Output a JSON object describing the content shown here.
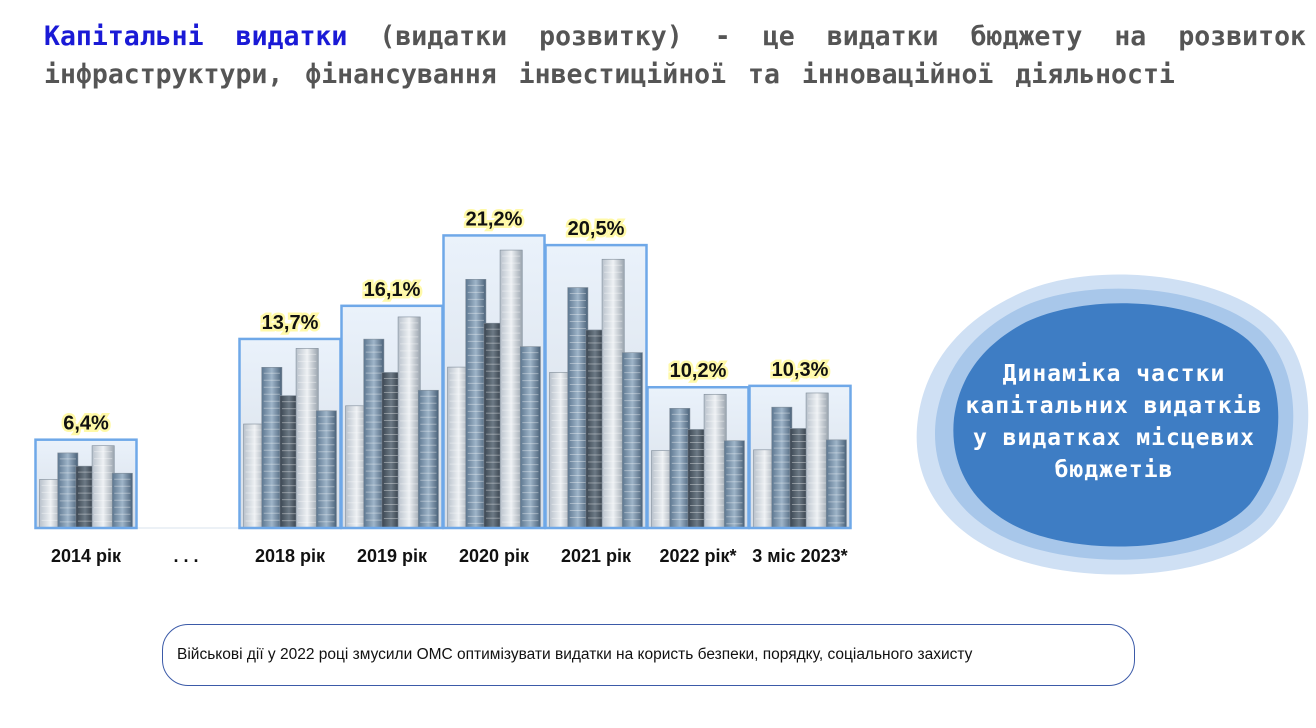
{
  "headline": {
    "term": "Капітальні видатки",
    "rest": " (видатки розвитку) - це видатки бюджету на розвиток інфраструктури, фінансування інвестиційної та інноваційної діяльності"
  },
  "chart_data": {
    "type": "bar",
    "categories": [
      "2014 рік",
      ". . .",
      "2018 рік",
      "2019 рік",
      "2020 рік",
      "2021 рік",
      "2022 рік*",
      "3 міс 2023*"
    ],
    "values": [
      6.4,
      null,
      13.7,
      16.1,
      21.2,
      20.5,
      10.2,
      10.3
    ],
    "data_labels": [
      "6,4%",
      "",
      "13,7%",
      "16,1%",
      "21,2%",
      "20,5%",
      "10,2%",
      "10,3%"
    ],
    "title": "Динаміка частки капітальних видатків у видатках місцевих бюджетів",
    "grid": false,
    "bar_fill": "city-skyline image"
  },
  "callout": {
    "lines": [
      "Динаміка частки",
      "капітальних видатків",
      "у видатках місцевих",
      "бюджетів"
    ]
  },
  "note": {
    "text": "Військові дії у 2022 році змусили ОМС оптимізувати видатки на користь безпеки, порядку, соціального захисту"
  },
  "colors": {
    "term": "#1a1ad6",
    "headline": "#555555",
    "bar_border": "#6fa8e8",
    "callout_fill": "#3e7dc4",
    "note_border": "#3b5aa8"
  }
}
